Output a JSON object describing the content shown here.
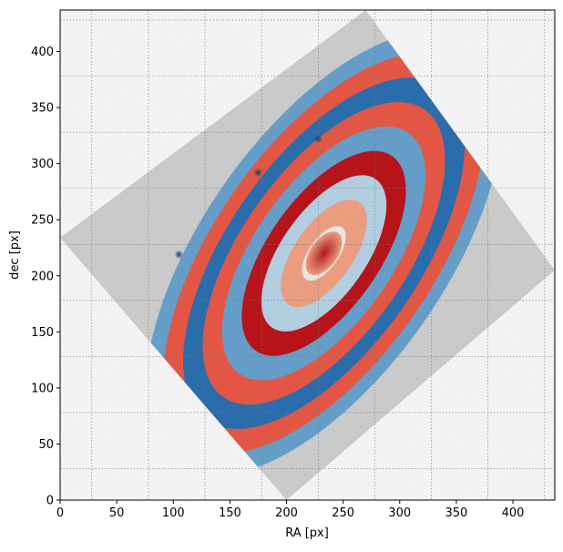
{
  "chart_data": {
    "type": "heatmap",
    "xlabel": "RA [px]",
    "ylabel": "dec [px]",
    "xlim": [
      0,
      437
    ],
    "ylim": [
      0,
      437
    ],
    "x_ticks": [
      0,
      50,
      100,
      150,
      200,
      250,
      300,
      350,
      400
    ],
    "y_ticks": [
      0,
      50,
      100,
      150,
      200,
      250,
      300,
      350,
      400
    ],
    "grid": true,
    "grid_x_lines": [
      28,
      78,
      128,
      178,
      228,
      278,
      328,
      378,
      428
    ],
    "grid_y_lines": [
      28,
      78,
      128,
      178,
      228,
      278,
      328,
      378,
      428
    ],
    "image_footprint_corners": [
      [
        270,
        437
      ],
      [
        437,
        205
      ],
      [
        200,
        0
      ],
      [
        0,
        234
      ]
    ],
    "image_center": [
      233,
      220
    ],
    "ellipse_major_axis_angle_deg": 55,
    "ellipse_axis_ratio": 0.47,
    "ring_major_radii": [
      28,
      55,
      80,
      105,
      130,
      155,
      180,
      205,
      228
    ],
    "colormap": "RdBu_r",
    "background_colormap": "gray",
    "colors": {
      "red_deep": "#c0151c",
      "red": "#ef5b48",
      "salmon": "#f7a586",
      "pale": "#f4f0ee",
      "blue_pale": "#bcd8ec",
      "blue": "#6aa6d3",
      "blue_deep": "#2d73b5",
      "gray_background": "#d4d4d4"
    },
    "features": [
      {
        "type": "blue-spot",
        "ra": 105,
        "dec": 219
      },
      {
        "type": "blue-spot",
        "ra": 175,
        "dec": 292
      },
      {
        "type": "blue-spot",
        "ra": 228,
        "dec": 322
      }
    ]
  }
}
